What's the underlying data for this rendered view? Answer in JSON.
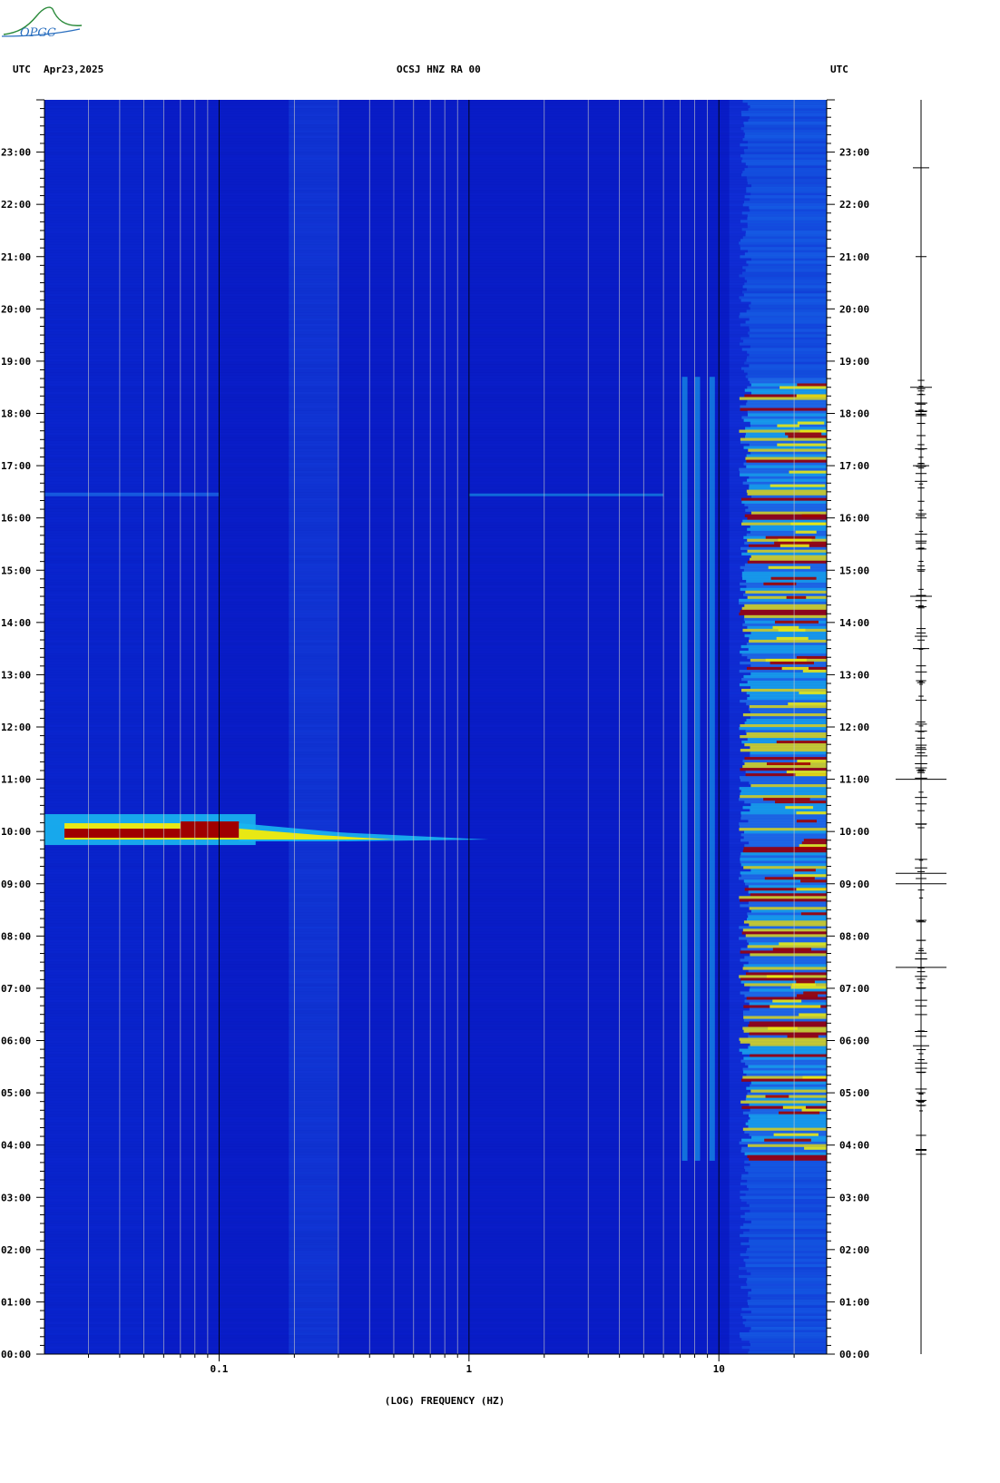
{
  "header": {
    "left_tz": "UTC",
    "date": "Apr23,2025",
    "station": "OCSJ HNZ RA 00",
    "right_tz": "UTC"
  },
  "logo": {
    "text": "OPGC",
    "color": "#2a8a3a"
  },
  "chart_data": {
    "type": "heatmap",
    "title": "OCSJ HNZ RA 00",
    "xlabel": "(LOG) FREQUENCY (HZ)",
    "ylabel": "",
    "x_scale": "log",
    "xlim": [
      0.02,
      27
    ],
    "x_ticks": [
      {
        "value": 0.1,
        "label": "0.1"
      },
      {
        "value": 1,
        "label": "1"
      },
      {
        "value": 10,
        "label": "10"
      }
    ],
    "ylim_hours": [
      0,
      24
    ],
    "y_ticks": [
      "00:00",
      "01:00",
      "02:00",
      "03:00",
      "04:00",
      "05:00",
      "06:00",
      "07:00",
      "08:00",
      "09:00",
      "10:00",
      "11:00",
      "12:00",
      "13:00",
      "14:00",
      "15:00",
      "16:00",
      "17:00",
      "18:00",
      "19:00",
      "20:00",
      "21:00",
      "22:00",
      "23:00"
    ],
    "colors": {
      "background": "#0a1ecc",
      "low": "#0a26d8",
      "mid": "#19b7f0",
      "high": "#e8e814",
      "peak": "#a00000"
    },
    "events": [
      {
        "time_h": 9.95,
        "fmin": 0.02,
        "fmax": 1.2,
        "note_time": "10:00"
      },
      {
        "time_h": 16.45,
        "fmin": 7,
        "fmax": 27
      },
      {
        "time_h": 9.2,
        "fmin": 7,
        "fmax": 27
      }
    ],
    "noise_band_hz": [
      12,
      27
    ],
    "active_hours": [
      3.7,
      18.7
    ],
    "trace_spikes_hours": [
      3.9,
      5.9,
      7.4,
      8.3,
      9.0,
      9.2,
      11.0,
      13.5,
      14.5,
      16.0,
      17.0,
      18.5,
      21.0,
      22.7
    ]
  }
}
